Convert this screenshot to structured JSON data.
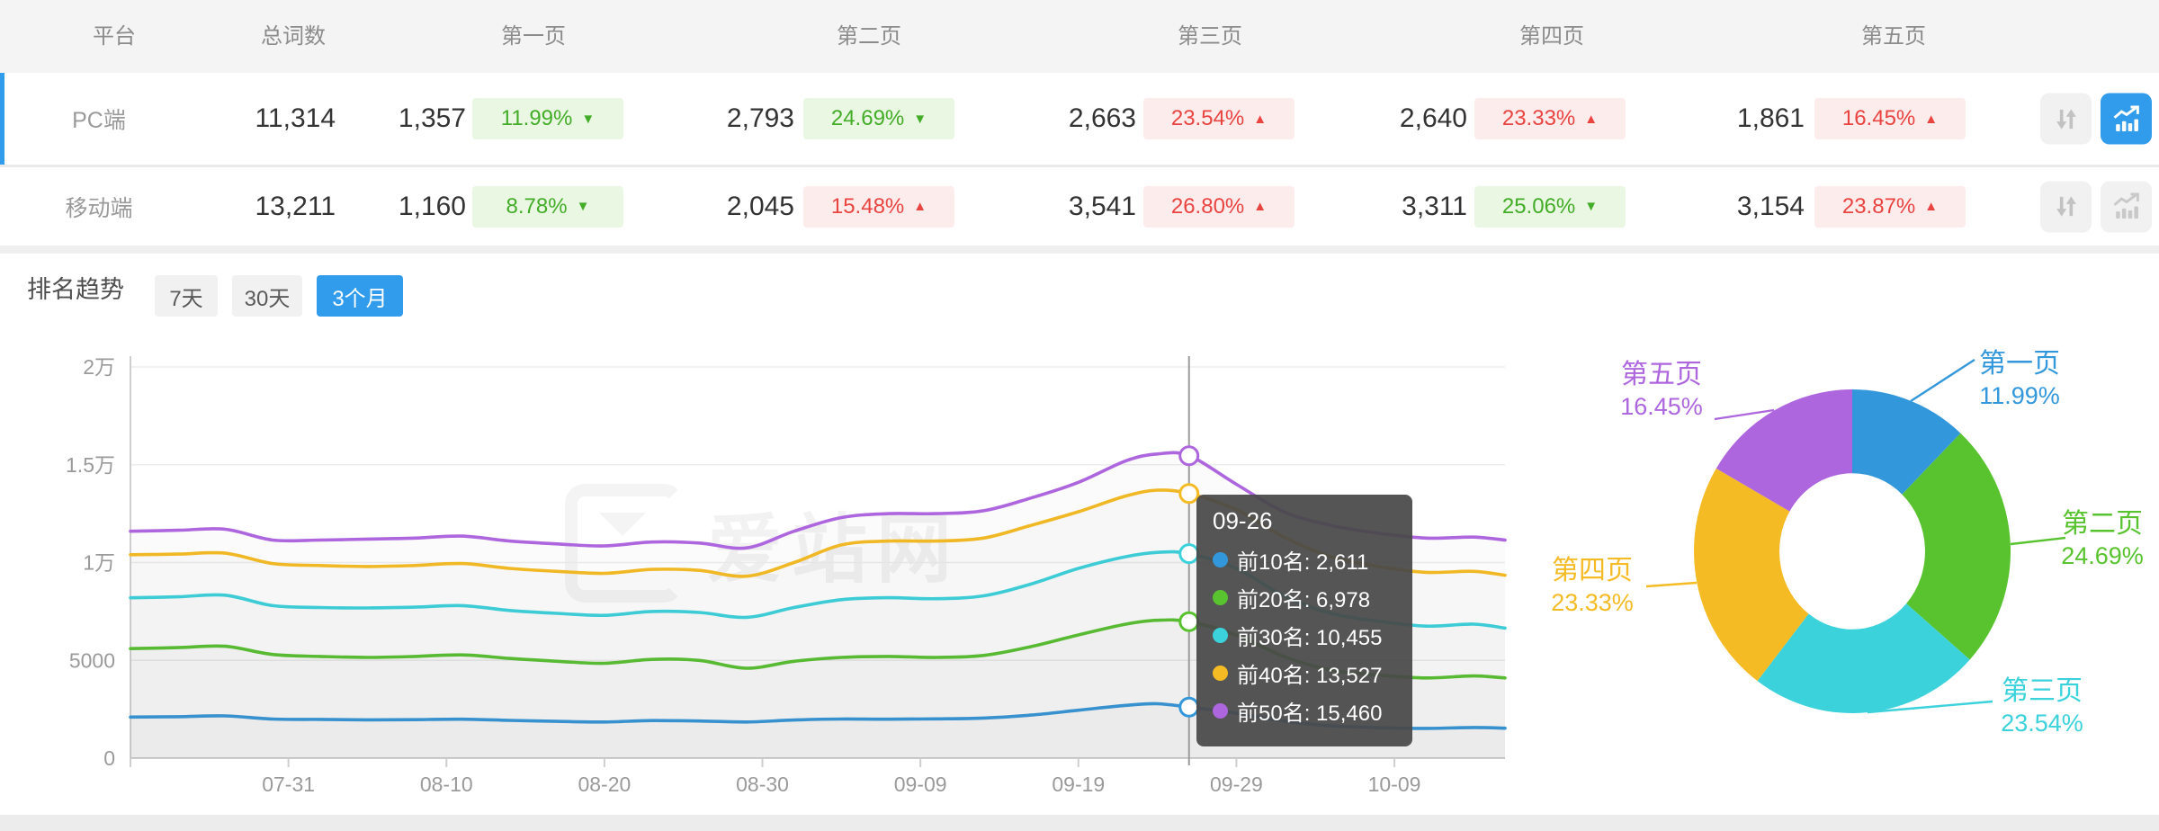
{
  "colors": {
    "accent_blue": "#319CEC",
    "positive_text": "#43AD28",
    "positive_bg": "#EAF7E3",
    "negative_text": "#E94440",
    "negative_bg": "#FDECEC"
  },
  "table": {
    "headers": [
      "平台",
      "总词数",
      "第一页",
      "第二页",
      "第三页",
      "第四页",
      "第五页"
    ],
    "rows": [
      {
        "platform": "PC端",
        "total": "11,314",
        "selected": true,
        "chart_active": true,
        "pages": [
          {
            "count": "1,357",
            "pct": "11.99%",
            "dir": "down",
            "trend": "good"
          },
          {
            "count": "2,793",
            "pct": "24.69%",
            "dir": "down",
            "trend": "good"
          },
          {
            "count": "2,663",
            "pct": "23.54%",
            "dir": "up",
            "trend": "bad"
          },
          {
            "count": "2,640",
            "pct": "23.33%",
            "dir": "up",
            "trend": "bad"
          },
          {
            "count": "1,861",
            "pct": "16.45%",
            "dir": "up",
            "trend": "bad"
          }
        ]
      },
      {
        "platform": "移动端",
        "total": "13,211",
        "selected": false,
        "chart_active": false,
        "pages": [
          {
            "count": "1,160",
            "pct": "8.78%",
            "dir": "down",
            "trend": "good"
          },
          {
            "count": "2,045",
            "pct": "15.48%",
            "dir": "up",
            "trend": "bad"
          },
          {
            "count": "3,541",
            "pct": "26.80%",
            "dir": "up",
            "trend": "bad"
          },
          {
            "count": "3,311",
            "pct": "25.06%",
            "dir": "down",
            "trend": "good"
          },
          {
            "count": "3,154",
            "pct": "23.87%",
            "dir": "up",
            "trend": "bad"
          }
        ]
      }
    ]
  },
  "trend_section": {
    "title": "排名趋势",
    "filters": [
      {
        "label": "7天",
        "active": false
      },
      {
        "label": "30天",
        "active": false
      },
      {
        "label": "3个月",
        "active": true
      }
    ]
  },
  "watermark": "爱站网",
  "tooltip": {
    "title": "09-26",
    "items": [
      {
        "label": "前10名",
        "value": "2,611",
        "color": "#3398DB"
      },
      {
        "label": "前20名",
        "value": "6,978",
        "color": "#58C32F"
      },
      {
        "label": "前30名",
        "value": "10,455",
        "color": "#3BD2DC"
      },
      {
        "label": "前40名",
        "value": "13,527",
        "color": "#F5BB24"
      },
      {
        "label": "前50名",
        "value": "15,460",
        "color": "#AE66DE"
      }
    ]
  },
  "chart_data": [
    {
      "type": "line",
      "title": "排名趋势 (3个月)",
      "ylim": [
        0,
        20000
      ],
      "y_ticks": [
        {
          "value": 0,
          "label": "0"
        },
        {
          "value": 5000,
          "label": "5000"
        },
        {
          "value": 10000,
          "label": "1万"
        },
        {
          "value": 15000,
          "label": "1.5万"
        },
        {
          "value": 20000,
          "label": "2万"
        }
      ],
      "x_tick_labels": [
        "07-31",
        "08-10",
        "08-20",
        "08-30",
        "09-09",
        "09-19",
        "09-29",
        "10-09"
      ],
      "tick_days": [
        10,
        20,
        30,
        40,
        50,
        60,
        70,
        80
      ],
      "x_days": [
        0,
        3,
        6,
        9,
        12,
        15,
        18,
        21,
        24,
        27,
        30,
        33,
        36,
        39,
        42,
        45,
        48,
        51,
        54,
        57,
        60,
        63,
        65,
        67,
        70,
        73,
        76,
        79,
        82,
        85,
        87
      ],
      "tooltip_day": 67,
      "grid": true,
      "legend": "none",
      "series": [
        {
          "name": "前10名",
          "color": "#3398DB",
          "values": [
            2100,
            2120,
            2160,
            2000,
            1980,
            1960,
            1970,
            1990,
            1930,
            1880,
            1850,
            1920,
            1900,
            1850,
            1950,
            2000,
            1990,
            2010,
            2050,
            2200,
            2450,
            2700,
            2780,
            2611,
            2300,
            1900,
            1650,
            1560,
            1520,
            1570,
            1530
          ]
        },
        {
          "name": "前20名",
          "color": "#58C32F",
          "values": [
            5600,
            5650,
            5720,
            5300,
            5200,
            5150,
            5200,
            5280,
            5100,
            4950,
            4850,
            5050,
            5000,
            4600,
            4950,
            5150,
            5200,
            5150,
            5250,
            5700,
            6300,
            6850,
            7050,
            6978,
            6300,
            5200,
            4500,
            4250,
            4100,
            4200,
            4100
          ]
        },
        {
          "name": "前30名",
          "color": "#3BD2DC",
          "values": [
            8200,
            8250,
            8330,
            7800,
            7700,
            7680,
            7720,
            7800,
            7550,
            7400,
            7300,
            7500,
            7450,
            7200,
            7700,
            8100,
            8200,
            8150,
            8300,
            8900,
            9700,
            10300,
            10520,
            10455,
            9700,
            8300,
            7400,
            7000,
            6750,
            6850,
            6650
          ]
        },
        {
          "name": "前40名",
          "color": "#F5BB24",
          "values": [
            10400,
            10430,
            10480,
            9950,
            9850,
            9800,
            9850,
            9950,
            9700,
            9550,
            9450,
            9650,
            9600,
            9300,
            10000,
            10900,
            11100,
            11100,
            11250,
            11900,
            12600,
            13400,
            13700,
            13527,
            12700,
            11300,
            10300,
            9800,
            9500,
            9550,
            9350
          ]
        },
        {
          "name": "前50名",
          "color": "#AE66DE",
          "values": [
            11600,
            11650,
            11700,
            11150,
            11150,
            11200,
            11250,
            11350,
            11100,
            10950,
            10850,
            11050,
            11000,
            10750,
            11600,
            12300,
            12500,
            12500,
            12650,
            13300,
            14100,
            15200,
            15550,
            15460,
            14000,
            12600,
            11900,
            11500,
            11250,
            11300,
            11150
          ]
        }
      ]
    },
    {
      "type": "pie",
      "title": "页面分布",
      "inner_radius_ratio": 0.46,
      "legend_position": "labels-with-leader-lines",
      "slices": [
        {
          "label": "第一页",
          "pct": 11.99,
          "color": "#3398DB"
        },
        {
          "label": "第二页",
          "pct": 24.69,
          "color": "#58C32F"
        },
        {
          "label": "第三页",
          "pct": 23.54,
          "color": "#3BD2DC"
        },
        {
          "label": "第四页",
          "pct": 23.33,
          "color": "#F5BB24"
        },
        {
          "label": "第五页",
          "pct": 16.45,
          "color": "#AE66DE"
        }
      ]
    }
  ]
}
